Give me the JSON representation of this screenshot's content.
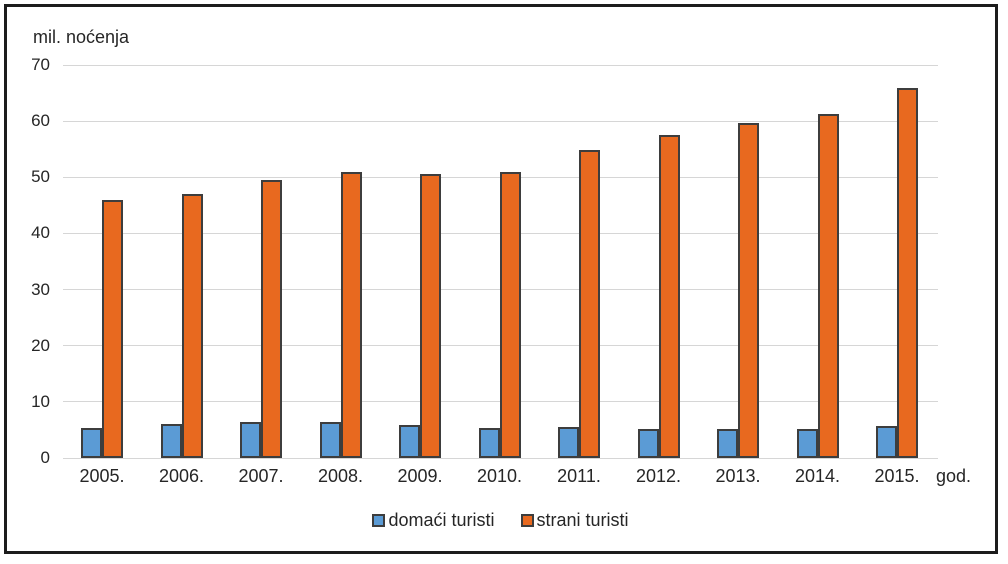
{
  "chart_data": {
    "type": "bar",
    "title": "mil. noćenja",
    "x_axis_label": "god.",
    "categories": [
      "2005.",
      "2006.",
      "2007.",
      "2008.",
      "2009.",
      "2010.",
      "2011.",
      "2012.",
      "2013.",
      "2014.",
      "2015."
    ],
    "series": [
      {
        "name": "domaći turisti",
        "color": "#5b9bd5",
        "values": [
          5.4,
          6.0,
          6.4,
          6.5,
          5.8,
          5.4,
          5.6,
          5.2,
          5.1,
          5.2,
          5.7
        ]
      },
      {
        "name": "strani turisti",
        "color": "#e8691f",
        "values": [
          46.0,
          47.0,
          49.6,
          50.9,
          50.5,
          51.0,
          54.8,
          57.5,
          59.7,
          61.3,
          65.9
        ]
      }
    ],
    "ylim": [
      0,
      70
    ],
    "yticks": [
      0,
      10,
      20,
      30,
      40,
      50,
      60,
      70
    ],
    "grid": true,
    "legend_position": "bottom",
    "colors": {
      "bar_border": "#3d3d3d",
      "gridline": "#d6d6d6",
      "text": "#262626",
      "frame_border": "#1c1c1c",
      "background": "#ffffff"
    }
  }
}
